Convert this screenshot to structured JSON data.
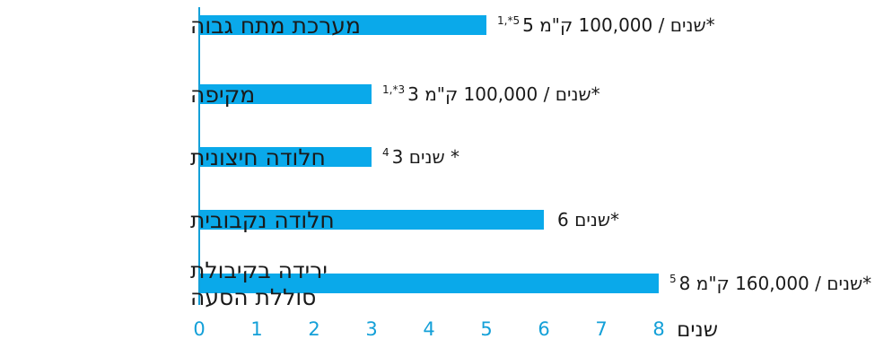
{
  "chart_data": {
    "type": "bar",
    "orientation": "horizontal",
    "categories": [
      [
        "מערכת מתח גבוה"
      ],
      [
        "מקיפה"
      ],
      [
        "חלודה חיצונית"
      ],
      [
        "חלודה נקבובית"
      ],
      [
        "ירידה בקיבולת",
        "סוללת הסעה"
      ]
    ],
    "values": [
      5,
      3,
      3,
      6,
      8
    ],
    "value_labels": [
      {
        "main": "5 שנים / 100,000 ק\"מ*",
        "sup": "1,*5"
      },
      {
        "main": "3 שנים / 100,000 ק\"מ*",
        "sup": "1,*3"
      },
      {
        "main": "3 שנים *",
        "sup": "4"
      },
      {
        "main": "6 שנים*",
        "sup": ""
      },
      {
        "main": "8 שנים / 160,000 ק\"מ*",
        "sup": "5"
      }
    ],
    "xticks": [
      "0",
      "1",
      "2",
      "3",
      "4",
      "5",
      "6",
      "7",
      "8"
    ],
    "xlim": [
      0,
      8
    ],
    "xlabel": "שנים",
    "title": "",
    "grid": false,
    "colors": {
      "bar": "#0aa9ea",
      "axis": "#14a0d8",
      "tick_text": "#14a0d8"
    }
  }
}
